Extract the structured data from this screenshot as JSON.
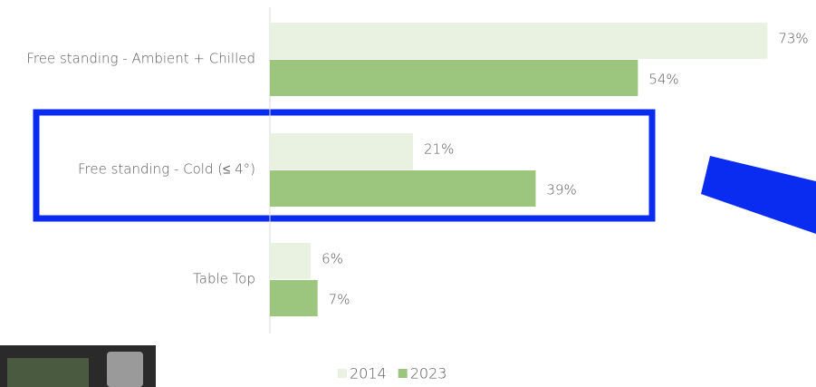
{
  "chart_data": {
    "type": "bar",
    "orientation": "horizontal",
    "categories": [
      "Free standing - Ambient + Chilled",
      "Free standing - Cold (≤ 4°)",
      "Table Top"
    ],
    "series": [
      {
        "name": "2014",
        "color": "#e9f1e1",
        "values": [
          73,
          21,
          6
        ],
        "value_labels": [
          "73%",
          "21%",
          "6%"
        ]
      },
      {
        "name": "2023",
        "color": "#9cc57d",
        "values": [
          54,
          39,
          7
        ],
        "value_labels": [
          "54%",
          "39%",
          "7%"
        ]
      }
    ],
    "xlim": [
      0,
      80
    ],
    "legend": "bottom"
  }
}
